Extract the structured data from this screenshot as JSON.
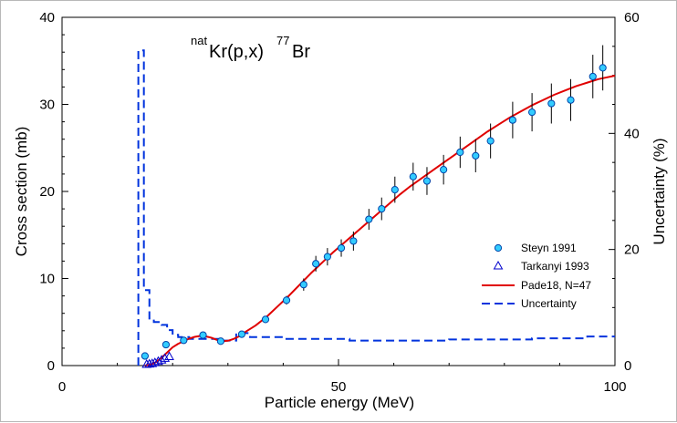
{
  "chart_data": {
    "type": "scatter",
    "title": {
      "prefix_sup": "nat",
      "main1": "Kr(p,x)",
      "sup2": "77",
      "main2": "Br"
    },
    "xlabel": "Particle energy (MeV)",
    "ylabel": "Cross section (mb)",
    "y2label": "Uncertainty (%)",
    "xlim": [
      0,
      100
    ],
    "ylim": [
      0,
      40
    ],
    "y2lim": [
      0,
      60
    ],
    "xticks": [
      0,
      50,
      100
    ],
    "yticks": [
      0,
      10,
      20,
      30,
      40
    ],
    "y2ticks": [
      0,
      20,
      40,
      60
    ],
    "legend_position": "right-middle",
    "colors": {
      "marker_fill": "#33ccff",
      "marker_edge": "#0044aa",
      "triangle": "#0000cc",
      "fit": "#e00000",
      "uncertainty": "#0033dd",
      "errorbar": "#000000"
    },
    "series": [
      {
        "name": "Steyn 1991",
        "kind": "circle",
        "points": [
          {
            "x": 15.0,
            "y": 1.1,
            "err": 0
          },
          {
            "x": 18.8,
            "y": 2.4,
            "err": 0
          },
          {
            "x": 22.0,
            "y": 2.9,
            "err": 0
          },
          {
            "x": 25.5,
            "y": 3.5,
            "err": 0
          },
          {
            "x": 28.7,
            "y": 2.8,
            "err": 0
          },
          {
            "x": 32.5,
            "y": 3.6,
            "err": 0
          },
          {
            "x": 36.8,
            "y": 5.3,
            "err": 0
          },
          {
            "x": 40.6,
            "y": 7.5,
            "err": 0.5
          },
          {
            "x": 43.7,
            "y": 9.3,
            "err": 0.7
          },
          {
            "x": 45.9,
            "y": 11.7,
            "err": 0.9
          },
          {
            "x": 48.0,
            "y": 12.5,
            "err": 1.0
          },
          {
            "x": 50.5,
            "y": 13.5,
            "err": 1.0
          },
          {
            "x": 52.7,
            "y": 14.3,
            "err": 1.1
          },
          {
            "x": 55.5,
            "y": 16.8,
            "err": 1.2
          },
          {
            "x": 57.8,
            "y": 18.0,
            "err": 1.3
          },
          {
            "x": 60.2,
            "y": 20.2,
            "err": 1.5
          },
          {
            "x": 63.5,
            "y": 21.7,
            "err": 1.6
          },
          {
            "x": 66.0,
            "y": 21.2,
            "err": 1.6
          },
          {
            "x": 69.0,
            "y": 22.5,
            "err": 1.7
          },
          {
            "x": 72.0,
            "y": 24.5,
            "err": 1.8
          },
          {
            "x": 74.8,
            "y": 24.1,
            "err": 1.9
          },
          {
            "x": 77.5,
            "y": 25.8,
            "err": 2.0
          },
          {
            "x": 81.5,
            "y": 28.2,
            "err": 2.1
          },
          {
            "x": 85.0,
            "y": 29.1,
            "err": 2.2
          },
          {
            "x": 88.5,
            "y": 30.1,
            "err": 2.3
          },
          {
            "x": 92.0,
            "y": 30.5,
            "err": 2.4
          },
          {
            "x": 96.0,
            "y": 33.2,
            "err": 2.5
          },
          {
            "x": 97.8,
            "y": 34.2,
            "err": 2.6
          }
        ]
      },
      {
        "name": "Tarkanyi 1993",
        "kind": "triangle",
        "points": [
          {
            "x": 15.3,
            "y": 0.1
          },
          {
            "x": 15.8,
            "y": 0.15
          },
          {
            "x": 16.3,
            "y": 0.2
          },
          {
            "x": 16.8,
            "y": 0.3
          },
          {
            "x": 17.4,
            "y": 0.45
          },
          {
            "x": 18.0,
            "y": 0.6
          },
          {
            "x": 18.6,
            "y": 0.8
          },
          {
            "x": 19.4,
            "y": 1.0
          }
        ]
      },
      {
        "name": "Pade18, N=47",
        "kind": "line",
        "points": [
          [
            15,
            0
          ],
          [
            16,
            0.1
          ],
          [
            17,
            0.4
          ],
          [
            18,
            0.9
          ],
          [
            19,
            1.5
          ],
          [
            20,
            2.1
          ],
          [
            21,
            2.5
          ],
          [
            22,
            2.8
          ],
          [
            23,
            3.1
          ],
          [
            24,
            3.3
          ],
          [
            25,
            3.4
          ],
          [
            26,
            3.35
          ],
          [
            27,
            3.2
          ],
          [
            28,
            2.95
          ],
          [
            29,
            2.8
          ],
          [
            30,
            2.85
          ],
          [
            31,
            3.05
          ],
          [
            32,
            3.35
          ],
          [
            33,
            3.8
          ],
          [
            35,
            4.6
          ],
          [
            37,
            5.6
          ],
          [
            39,
            6.8
          ],
          [
            41,
            8.0
          ],
          [
            43,
            9.3
          ],
          [
            45,
            10.6
          ],
          [
            47,
            11.8
          ],
          [
            49,
            13.0
          ],
          [
            51,
            14.1
          ],
          [
            53,
            15.2
          ],
          [
            55,
            16.3
          ],
          [
            57,
            17.4
          ],
          [
            59,
            18.5
          ],
          [
            61,
            19.6
          ],
          [
            63,
            20.6
          ],
          [
            65,
            21.5
          ],
          [
            67,
            22.4
          ],
          [
            69,
            23.3
          ],
          [
            71,
            24.2
          ],
          [
            73,
            25.1
          ],
          [
            75,
            26.0
          ],
          [
            77,
            26.9
          ],
          [
            79,
            27.7
          ],
          [
            81,
            28.5
          ],
          [
            83,
            29.2
          ],
          [
            85,
            29.9
          ],
          [
            87,
            30.5
          ],
          [
            89,
            31.1
          ],
          [
            91,
            31.6
          ],
          [
            93,
            32.1
          ],
          [
            95,
            32.5
          ],
          [
            97,
            32.9
          ],
          [
            100,
            33.3
          ]
        ]
      },
      {
        "name": "Uncertainty",
        "kind": "step-dashed",
        "axis": "y2",
        "points": [
          [
            13.8,
            0
          ],
          [
            13.8,
            54.3
          ],
          [
            14.8,
            54.3
          ],
          [
            14.8,
            13.0
          ],
          [
            15.8,
            13.0
          ],
          [
            15.8,
            8.1
          ],
          [
            16.6,
            8.1
          ],
          [
            16.6,
            7.5
          ],
          [
            18.0,
            7.5
          ],
          [
            18.0,
            7.0
          ],
          [
            19.0,
            7.0
          ],
          [
            19.0,
            6.1
          ],
          [
            20.0,
            6.1
          ],
          [
            20.0,
            5.3
          ],
          [
            21.0,
            5.3
          ],
          [
            21.0,
            4.9
          ],
          [
            23.0,
            4.9
          ],
          [
            23.0,
            4.6
          ],
          [
            29.0,
            4.6
          ],
          [
            29.0,
            4.3
          ],
          [
            31.5,
            4.3
          ],
          [
            31.5,
            5.6
          ],
          [
            34.0,
            5.6
          ],
          [
            34.0,
            4.9
          ],
          [
            40.0,
            4.9
          ],
          [
            40.0,
            4.6
          ],
          [
            52.0,
            4.6
          ],
          [
            52.0,
            4.3
          ],
          [
            70.0,
            4.3
          ],
          [
            70.0,
            4.5
          ],
          [
            85.0,
            4.5
          ],
          [
            85.0,
            4.7
          ],
          [
            95.0,
            4.7
          ],
          [
            95.0,
            5.0
          ],
          [
            100.0,
            5.0
          ]
        ]
      }
    ]
  }
}
